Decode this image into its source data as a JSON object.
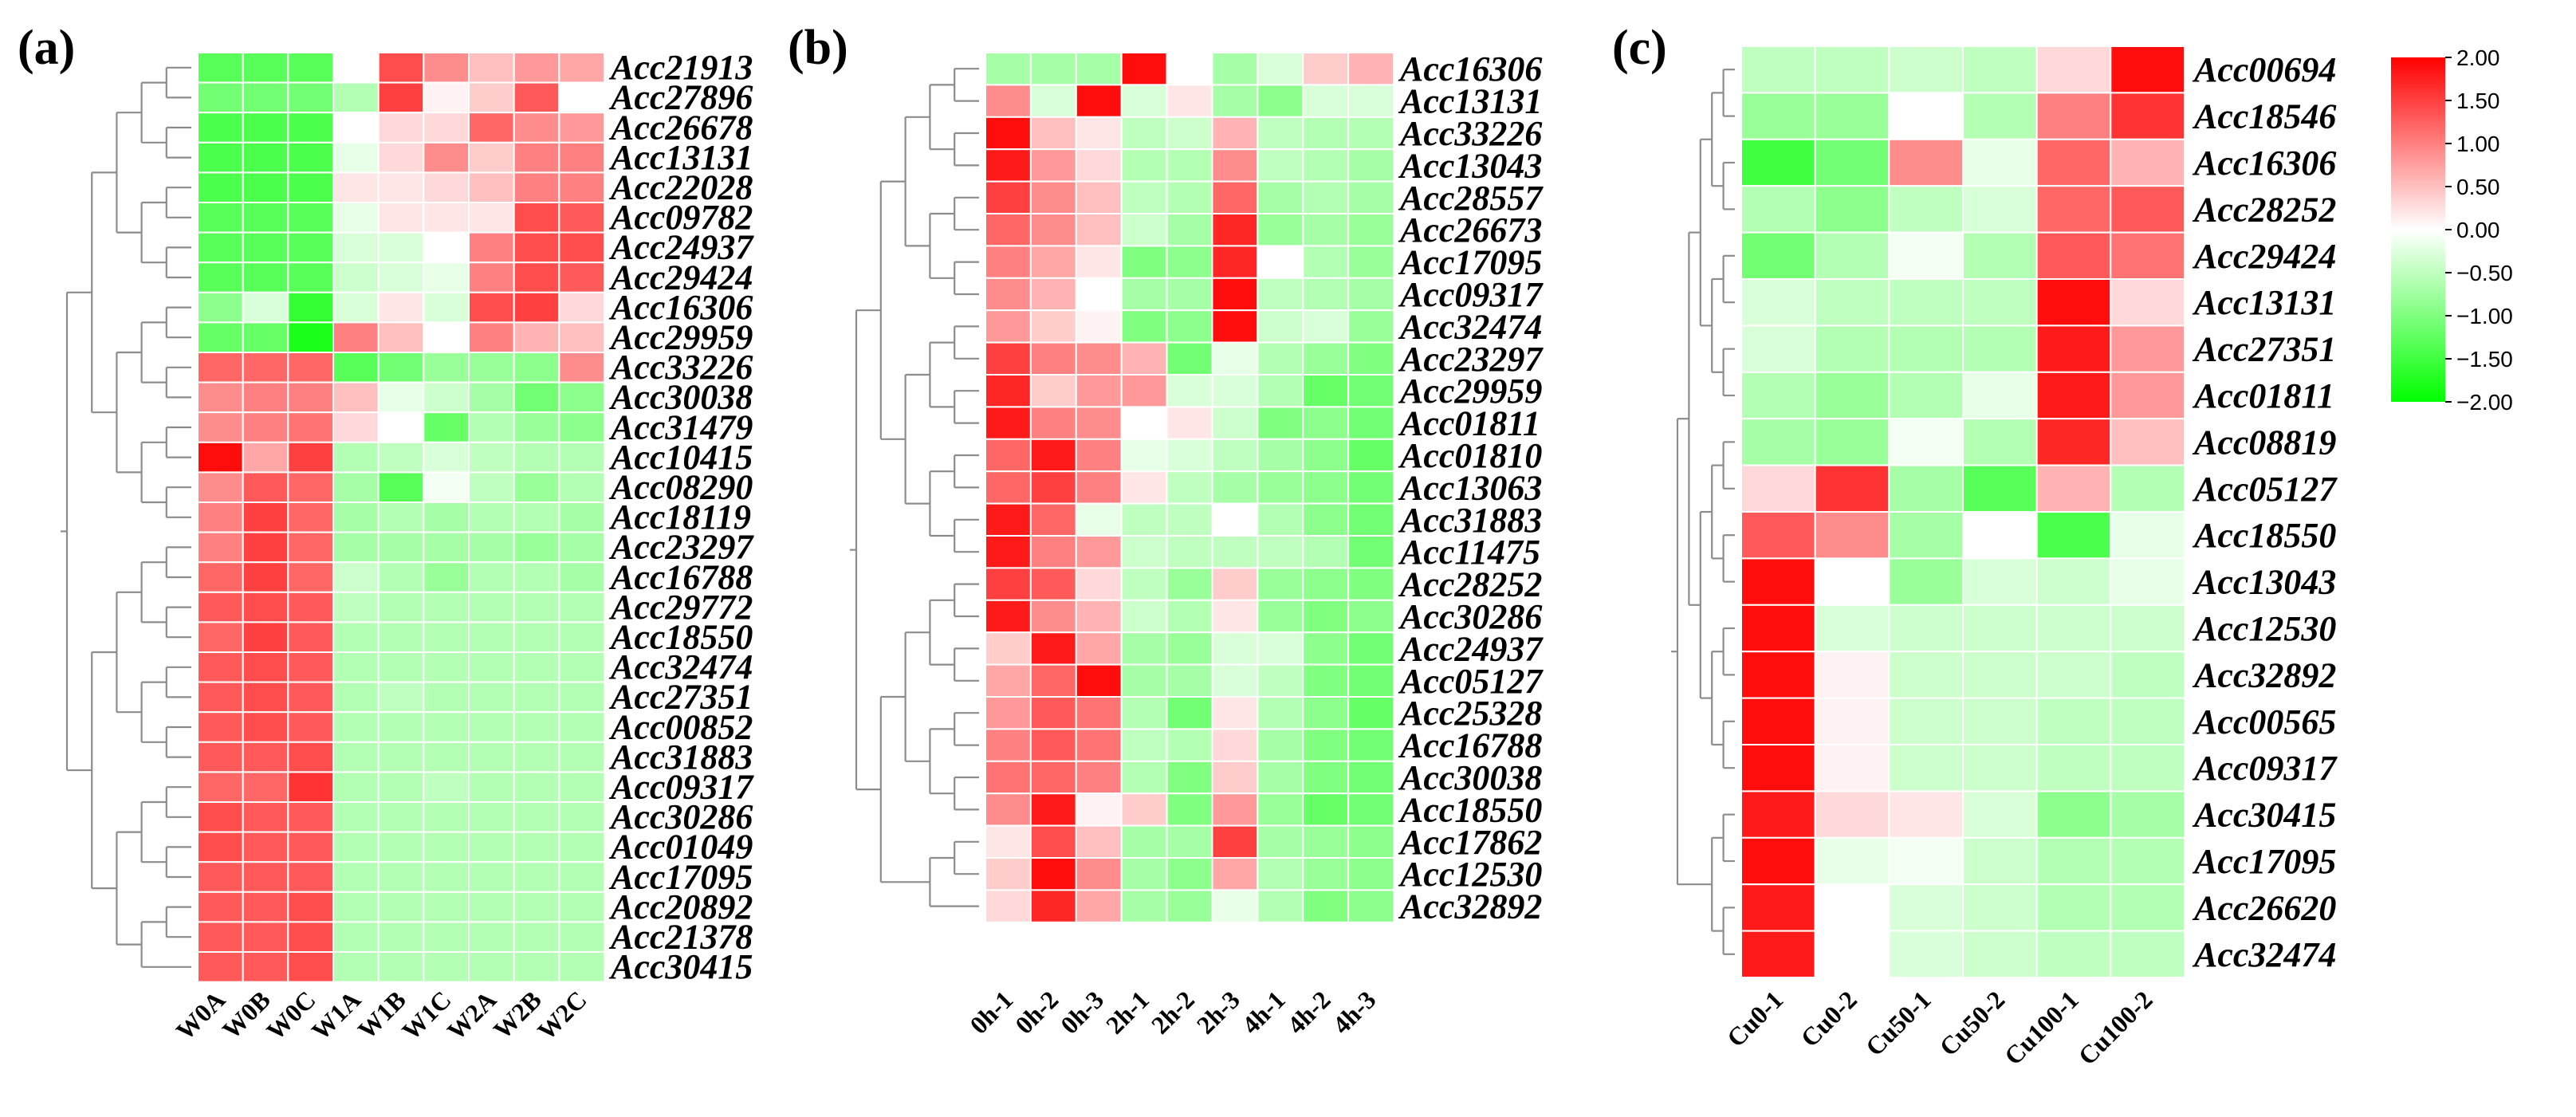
{
  "figure": {
    "colorbar": {
      "colors": {
        "low": "#00ff00",
        "mid": "#ffffff",
        "high": "#ff0000"
      },
      "min": -2.0,
      "max": 2.0,
      "ticks": [
        "2.00",
        "1.50",
        "1.00",
        "0.50",
        "0.00",
        "−0.50",
        "−1.00",
        "−1.50",
        "−2.00"
      ],
      "tick_values": [
        2.0,
        1.5,
        1.0,
        0.5,
        0.0,
        -0.5,
        -1.0,
        -1.5,
        -2.0
      ]
    }
  },
  "chart_data": [
    {
      "type": "heatmap",
      "panel_label": "(a)",
      "rows": [
        "Acc21913",
        "Acc27896",
        "Acc26678",
        "Acc13131",
        "Acc22028",
        "Acc09782",
        "Acc24937",
        "Acc29424",
        "Acc16306",
        "Acc29959",
        "Acc33226",
        "Acc30038",
        "Acc31479",
        "Acc10415",
        "Acc08290",
        "Acc18119",
        "Acc23297",
        "Acc16788",
        "Acc29772",
        "Acc18550",
        "Acc32474",
        "Acc27351",
        "Acc00852",
        "Acc31883",
        "Acc09317",
        "Acc30286",
        "Acc01049",
        "Acc17095",
        "Acc20892",
        "Acc21378",
        "Acc30415"
      ],
      "columns": [
        "W0A",
        "W0B",
        "W0C",
        "W1A",
        "W1B",
        "W1C",
        "W2A",
        "W2B",
        "W2C"
      ],
      "values": [
        [
          -1.3,
          -1.3,
          -1.3,
          0.0,
          1.4,
          0.9,
          0.5,
          0.8,
          0.7
        ],
        [
          -1.1,
          -1.1,
          -1.1,
          -0.6,
          1.5,
          0.1,
          0.4,
          1.3,
          0.0
        ],
        [
          -1.4,
          -1.4,
          -1.4,
          0.0,
          0.3,
          0.3,
          1.2,
          0.9,
          0.8
        ],
        [
          -1.4,
          -1.4,
          -1.4,
          -0.2,
          0.3,
          0.9,
          0.4,
          1.0,
          1.0
        ],
        [
          -1.4,
          -1.4,
          -1.4,
          0.2,
          0.2,
          0.3,
          0.5,
          1.0,
          1.0
        ],
        [
          -1.3,
          -1.3,
          -1.3,
          -0.2,
          0.2,
          0.2,
          0.2,
          1.4,
          1.3
        ],
        [
          -1.3,
          -1.3,
          -1.3,
          -0.3,
          -0.3,
          0.0,
          1.0,
          1.4,
          1.4
        ],
        [
          -1.3,
          -1.3,
          -1.3,
          -0.4,
          -0.3,
          -0.2,
          1.0,
          1.4,
          1.3
        ],
        [
          -0.9,
          -0.3,
          -1.6,
          -0.3,
          0.2,
          -0.3,
          1.4,
          1.5,
          0.3
        ],
        [
          -1.2,
          -1.2,
          -1.8,
          1.0,
          0.5,
          0.0,
          1.0,
          0.6,
          0.5
        ],
        [
          1.2,
          1.2,
          1.2,
          -1.3,
          -1.1,
          -0.8,
          -0.8,
          -0.9,
          0.9
        ],
        [
          0.9,
          1.0,
          1.0,
          0.5,
          -0.2,
          -0.4,
          -0.7,
          -1.1,
          -0.9
        ],
        [
          0.9,
          1.0,
          1.1,
          0.3,
          0.0,
          -1.2,
          -0.6,
          -0.8,
          -0.9
        ],
        [
          1.9,
          0.7,
          1.5,
          -0.6,
          -0.5,
          -0.3,
          -0.5,
          -0.6,
          -0.6
        ],
        [
          0.9,
          1.3,
          1.2,
          -0.7,
          -1.3,
          -0.1,
          -0.5,
          -0.8,
          -0.6
        ],
        [
          1.0,
          1.5,
          1.2,
          -0.7,
          -0.6,
          -0.7,
          -0.6,
          -0.6,
          -0.7
        ],
        [
          1.0,
          1.5,
          1.2,
          -0.7,
          -0.7,
          -0.7,
          -0.7,
          -0.8,
          -0.7
        ],
        [
          1.2,
          1.5,
          1.2,
          -0.4,
          -0.6,
          -0.8,
          -0.6,
          -0.6,
          -0.7
        ],
        [
          1.3,
          1.4,
          1.3,
          -0.5,
          -0.6,
          -0.6,
          -0.6,
          -0.6,
          -0.6
        ],
        [
          1.2,
          1.5,
          1.3,
          -0.6,
          -0.6,
          -0.6,
          -0.6,
          -0.6,
          -0.6
        ],
        [
          1.3,
          1.4,
          1.3,
          -0.6,
          -0.6,
          -0.6,
          -0.6,
          -0.6,
          -0.6
        ],
        [
          1.3,
          1.4,
          1.3,
          -0.6,
          -0.5,
          -0.6,
          -0.6,
          -0.6,
          -0.6
        ],
        [
          1.3,
          1.4,
          1.3,
          -0.6,
          -0.6,
          -0.6,
          -0.6,
          -0.6,
          -0.6
        ],
        [
          1.3,
          1.3,
          1.4,
          -0.6,
          -0.6,
          -0.6,
          -0.6,
          -0.6,
          -0.6
        ],
        [
          1.2,
          1.2,
          1.6,
          -0.6,
          -0.6,
          -0.5,
          -0.6,
          -0.6,
          -0.6
        ],
        [
          1.4,
          1.3,
          1.3,
          -0.6,
          -0.6,
          -0.6,
          -0.6,
          -0.6,
          -0.6
        ],
        [
          1.4,
          1.3,
          1.3,
          -0.6,
          -0.6,
          -0.6,
          -0.6,
          -0.6,
          -0.6
        ],
        [
          1.3,
          1.3,
          1.3,
          -0.6,
          -0.6,
          -0.6,
          -0.6,
          -0.6,
          -0.6
        ],
        [
          1.3,
          1.3,
          1.4,
          -0.6,
          -0.6,
          -0.6,
          -0.6,
          -0.6,
          -0.6
        ],
        [
          1.3,
          1.3,
          1.4,
          -0.6,
          -0.6,
          -0.6,
          -0.6,
          -0.6,
          -0.6
        ],
        [
          1.3,
          1.3,
          1.4,
          -0.6,
          -0.6,
          -0.6,
          -0.6,
          -0.6,
          -0.6
        ]
      ]
    },
    {
      "type": "heatmap",
      "panel_label": "(b)",
      "rows": [
        "Acc16306",
        "Acc13131",
        "Acc33226",
        "Acc13043",
        "Acc28557",
        "Acc26673",
        "Acc17095",
        "Acc09317",
        "Acc32474",
        "Acc23297",
        "Acc29959",
        "Acc01811",
        "Acc01810",
        "Acc13063",
        "Acc31883",
        "Acc11475",
        "Acc28252",
        "Acc30286",
        "Acc24937",
        "Acc05127",
        "Acc25328",
        "Acc16788",
        "Acc30038",
        "Acc18550",
        "Acc17862",
        "Acc12530",
        "Acc32892"
      ],
      "columns": [
        "0h-1",
        "0h-2",
        "0h-3",
        "2h-1",
        "2h-2",
        "2h-3",
        "4h-1",
        "4h-2",
        "4h-3"
      ],
      "values": [
        [
          -0.7,
          -0.7,
          -0.7,
          1.9,
          0.0,
          -0.7,
          -0.3,
          0.4,
          0.6
        ],
        [
          0.9,
          -0.3,
          1.9,
          -0.3,
          0.2,
          -0.7,
          -0.9,
          -0.3,
          -0.3
        ],
        [
          1.9,
          0.5,
          0.2,
          -0.5,
          -0.4,
          0.6,
          -0.5,
          -0.6,
          -0.6
        ],
        [
          1.8,
          0.8,
          0.3,
          -0.6,
          -0.6,
          0.9,
          -0.5,
          -0.6,
          -0.7
        ],
        [
          1.5,
          0.9,
          0.5,
          -0.5,
          -0.6,
          1.2,
          -0.7,
          -0.6,
          -0.7
        ],
        [
          1.2,
          0.9,
          0.5,
          -0.4,
          -0.7,
          1.7,
          -0.8,
          -0.7,
          -0.8
        ],
        [
          1.0,
          0.7,
          0.2,
          -1.0,
          -0.9,
          1.7,
          0.0,
          -0.6,
          -0.8
        ],
        [
          0.9,
          0.6,
          0.0,
          -0.7,
          -0.7,
          1.9,
          -0.5,
          -0.6,
          -0.7
        ],
        [
          0.8,
          0.4,
          0.1,
          -1.0,
          -0.9,
          1.9,
          -0.4,
          -0.3,
          -0.8
        ],
        [
          1.5,
          1.0,
          0.9,
          0.6,
          -1.1,
          -0.2,
          -0.6,
          -0.8,
          -1.0
        ],
        [
          1.7,
          0.4,
          0.8,
          0.8,
          -0.3,
          -0.3,
          -0.6,
          -1.2,
          -1.1
        ],
        [
          1.8,
          1.0,
          0.9,
          0.0,
          0.2,
          -0.4,
          -1.0,
          -0.9,
          -1.1
        ],
        [
          1.2,
          1.8,
          1.0,
          -0.2,
          -0.3,
          -0.5,
          -0.7,
          -0.9,
          -1.2
        ],
        [
          1.2,
          1.5,
          1.0,
          0.2,
          -0.5,
          -0.7,
          -0.8,
          -0.9,
          -1.1
        ],
        [
          1.8,
          1.2,
          -0.2,
          -0.5,
          -0.5,
          0.0,
          -0.6,
          -0.9,
          -1.1
        ],
        [
          1.8,
          1.0,
          0.8,
          -0.4,
          -0.5,
          -0.5,
          -0.5,
          -0.6,
          -1.1
        ],
        [
          1.5,
          1.3,
          0.3,
          -0.5,
          -0.8,
          0.4,
          -0.8,
          -0.9,
          -1.0
        ],
        [
          1.8,
          0.9,
          0.6,
          -0.4,
          -0.6,
          0.2,
          -0.8,
          -1.0,
          -0.9
        ],
        [
          0.4,
          1.8,
          0.7,
          -0.7,
          -0.8,
          -0.3,
          -0.3,
          -0.9,
          -1.1
        ],
        [
          0.7,
          1.2,
          1.9,
          -0.7,
          -0.7,
          -0.3,
          -0.5,
          -1.0,
          -1.1
        ],
        [
          0.8,
          1.3,
          1.1,
          -0.6,
          -1.1,
          0.2,
          -0.6,
          -0.9,
          -1.2
        ],
        [
          1.0,
          1.3,
          1.1,
          -0.5,
          -0.6,
          0.3,
          -0.7,
          -1.0,
          -1.1
        ],
        [
          1.1,
          1.2,
          1.0,
          -0.6,
          -1.0,
          0.4,
          -0.7,
          -1.0,
          -1.1
        ],
        [
          0.9,
          1.8,
          0.1,
          0.4,
          -1.0,
          0.8,
          -0.8,
          -1.2,
          -1.1
        ],
        [
          0.2,
          1.4,
          0.5,
          -0.7,
          -0.7,
          1.5,
          -0.7,
          -0.8,
          -0.9
        ],
        [
          0.4,
          1.9,
          0.9,
          -0.7,
          -0.9,
          0.7,
          -0.6,
          -0.8,
          -0.9
        ],
        [
          0.3,
          1.7,
          0.7,
          -0.7,
          -0.8,
          -0.2,
          -0.6,
          -1.0,
          -0.9
        ]
      ]
    },
    {
      "type": "heatmap",
      "panel_label": "(c)",
      "rows": [
        "Acc00694",
        "Acc18546",
        "Acc16306",
        "Acc28252",
        "Acc29424",
        "Acc13131",
        "Acc27351",
        "Acc01811",
        "Acc08819",
        "Acc05127",
        "Acc18550",
        "Acc13043",
        "Acc12530",
        "Acc32892",
        "Acc00565",
        "Acc09317",
        "Acc30415",
        "Acc17095",
        "Acc26620",
        "Acc32474"
      ],
      "columns": [
        "Cu0-1",
        "Cu0-2",
        "Cu50-1",
        "Cu50-2",
        "Cu100-1",
        "Cu100-2"
      ],
      "values": [
        [
          -0.5,
          -0.5,
          -0.4,
          -0.5,
          0.3,
          1.9
        ],
        [
          -0.8,
          -0.8,
          0.0,
          -0.6,
          1.0,
          1.6
        ],
        [
          -1.5,
          -1.1,
          0.9,
          -0.2,
          1.2,
          0.6
        ],
        [
          -0.6,
          -0.9,
          -0.5,
          -0.3,
          1.2,
          1.3
        ],
        [
          -1.1,
          -0.6,
          -0.1,
          -0.6,
          1.3,
          1.1
        ],
        [
          -0.3,
          -0.5,
          -0.5,
          -0.5,
          1.9,
          0.3
        ],
        [
          -0.3,
          -0.6,
          -0.6,
          -0.6,
          1.8,
          0.8
        ],
        [
          -0.6,
          -0.8,
          -0.6,
          -0.2,
          1.8,
          0.8
        ],
        [
          -0.7,
          -0.8,
          -0.1,
          -0.6,
          1.7,
          0.5
        ],
        [
          0.3,
          1.6,
          -0.7,
          -1.3,
          0.6,
          -0.6
        ],
        [
          1.3,
          0.9,
          -0.7,
          0.0,
          -1.4,
          -0.2
        ],
        [
          1.9,
          0.0,
          -0.8,
          -0.3,
          -0.4,
          -0.2
        ],
        [
          1.9,
          -0.3,
          -0.4,
          -0.4,
          -0.4,
          -0.4
        ],
        [
          1.9,
          0.1,
          -0.4,
          -0.4,
          -0.4,
          -0.5
        ],
        [
          1.9,
          0.1,
          -0.4,
          -0.4,
          -0.5,
          -0.5
        ],
        [
          1.9,
          0.1,
          -0.4,
          -0.4,
          -0.5,
          -0.5
        ],
        [
          1.8,
          0.3,
          0.2,
          -0.3,
          -0.9,
          -0.7
        ],
        [
          1.9,
          -0.2,
          -0.1,
          -0.4,
          -0.6,
          -0.6
        ],
        [
          1.8,
          0.0,
          -0.3,
          -0.4,
          -0.6,
          -0.6
        ],
        [
          1.8,
          0.0,
          -0.3,
          -0.4,
          -0.5,
          -0.5
        ]
      ]
    }
  ]
}
